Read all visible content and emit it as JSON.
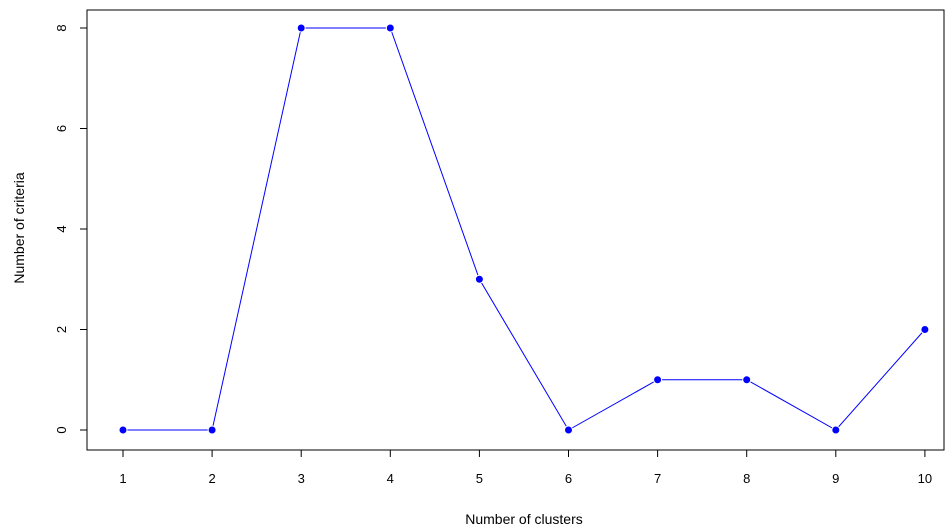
{
  "chart_data": {
    "type": "line",
    "title": "",
    "xlabel": "Number of clusters",
    "ylabel": "Number of criteria",
    "x": [
      1,
      2,
      3,
      4,
      5,
      6,
      7,
      8,
      9,
      10
    ],
    "series": [
      {
        "values": [
          0,
          0,
          8,
          8,
          3,
          0,
          1,
          1,
          0,
          2
        ]
      }
    ],
    "x_ticks": [
      "1",
      "2",
      "3",
      "4",
      "5",
      "6",
      "7",
      "8",
      "9",
      "10"
    ],
    "y_ticks": [
      "0",
      "2",
      "4",
      "6",
      "8"
    ],
    "xlim": [
      1,
      10
    ],
    "ylim": [
      0,
      8
    ],
    "grid": false,
    "legend": "none",
    "line_color": "#0000ff",
    "marker_color": "#0000ff",
    "axis_color": "#000000"
  }
}
